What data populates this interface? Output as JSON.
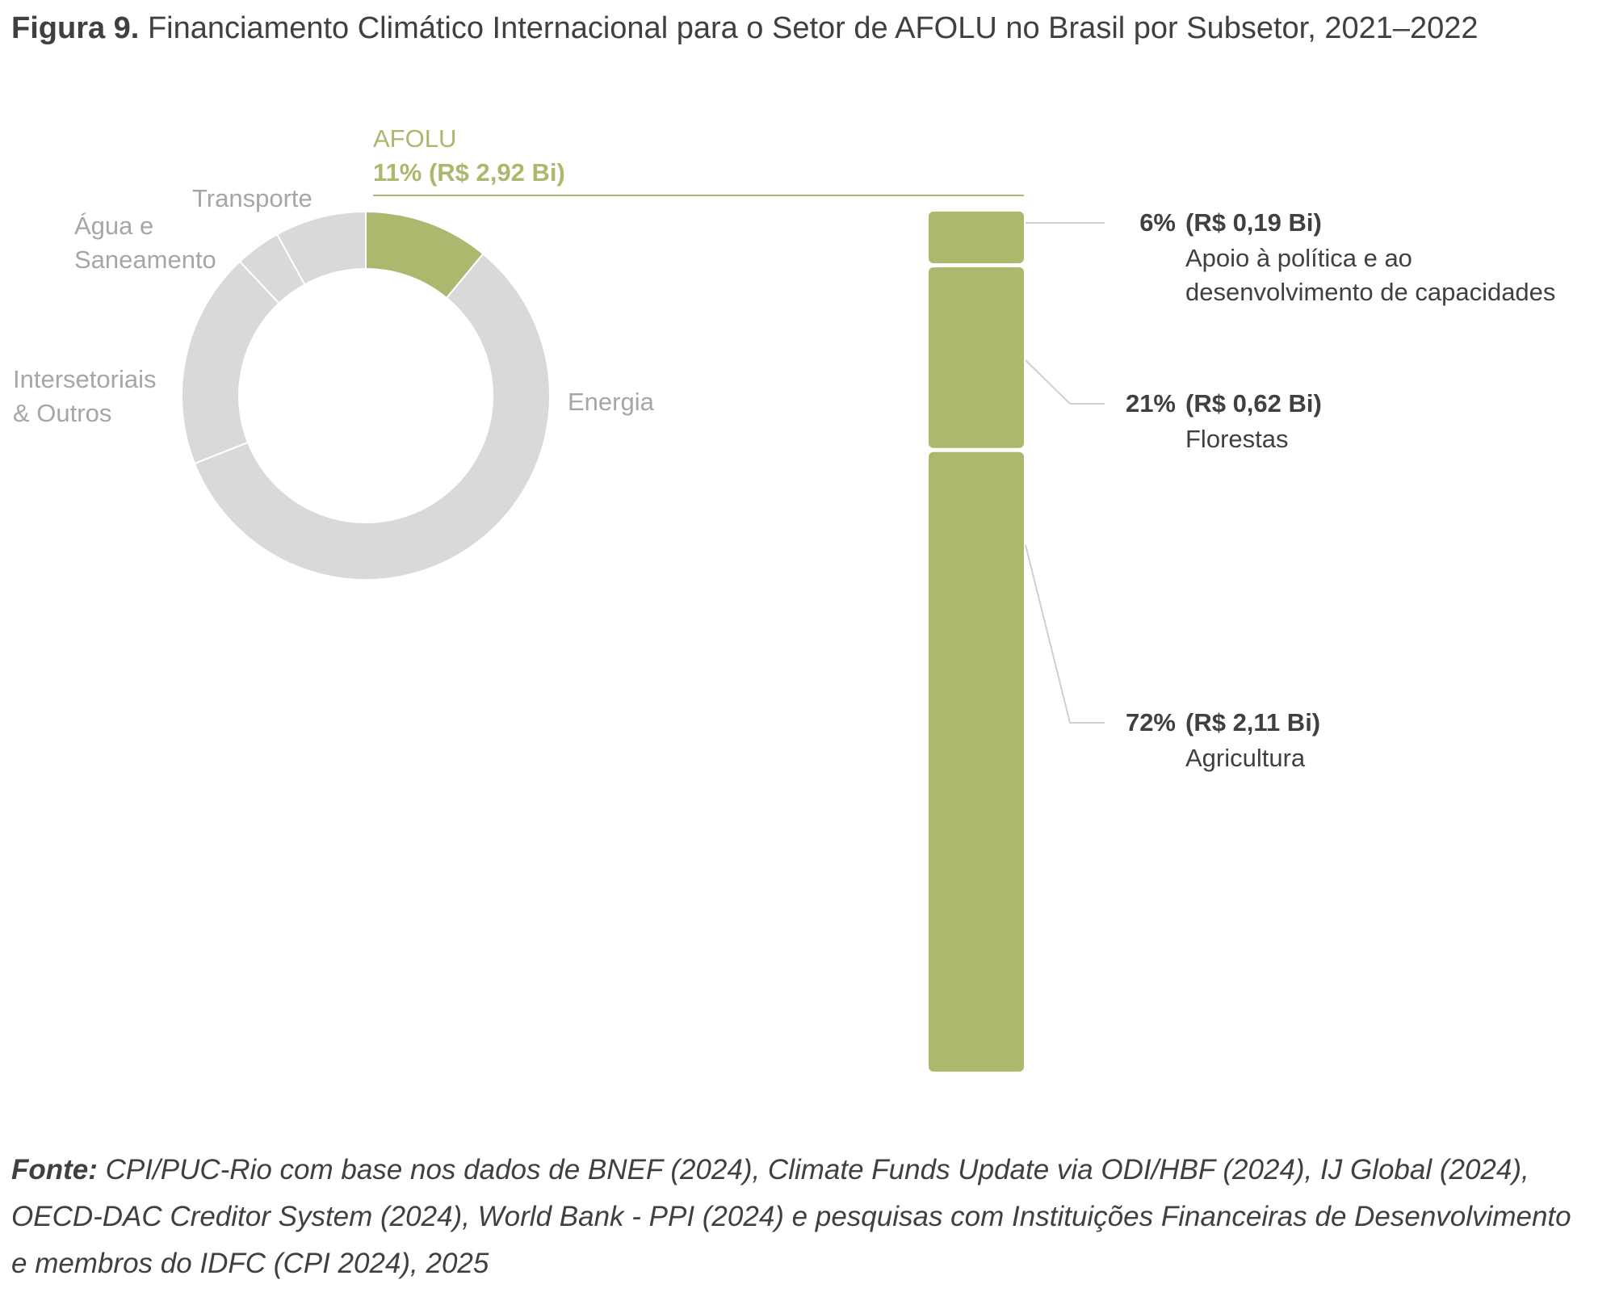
{
  "title": {
    "prefix": "Figura 9.",
    "text": "Financiamento Climático Internacional para o Setor de AFOLU no Brasil por Subsetor, 2021–2022"
  },
  "source": {
    "prefix": "Fonte:",
    "text": "CPI/PUC-Rio com base nos dados de BNEF (2024), Climate Funds Update via ODI/HBF (2024), IJ Global (2024), OECD-DAC Creditor System (2024), World Bank - PPI (2024) e pesquisas com Instituições Financeiras de Desenvolvimento e membros do IDFC (CPI 2024), 2025"
  },
  "colors": {
    "accent": "#adb76d",
    "muted": "#d9d9d9",
    "muted_text": "#a6a6a6",
    "text": "#404040",
    "line": "#cfcfcf"
  },
  "chart_data": [
    {
      "type": "pie",
      "variant": "donut",
      "slices": [
        {
          "label": "AFOLU",
          "value": 11,
          "value_text": "11% (R$ 2,92 Bi)",
          "highlight": true
        },
        {
          "label": "Energia",
          "value": 58,
          "highlight": false
        },
        {
          "label": "Intersetoriais\n& Outros",
          "value": 19,
          "highlight": false
        },
        {
          "label": "Água e\nSaneamento",
          "value": 4,
          "highlight": false
        },
        {
          "label": "Transporte",
          "value": 8,
          "highlight": false
        }
      ]
    },
    {
      "type": "bar",
      "variant": "stacked-100",
      "title": "AFOLU",
      "segments": [
        {
          "label": "Apoio à política e ao\ndesenvolvimento de capacidades",
          "percent": 6,
          "percent_text": "6%",
          "value_text": "(R$ 0,19 Bi)",
          "value_bi": 0.19
        },
        {
          "label": "Florestas",
          "percent": 21,
          "percent_text": "21%",
          "value_text": "(R$ 0,62 Bi)",
          "value_bi": 0.62
        },
        {
          "label": "Agricultura",
          "percent": 72,
          "percent_text": "72%",
          "value_text": "(R$ 2,11 Bi)",
          "value_bi": 2.11
        }
      ]
    }
  ]
}
